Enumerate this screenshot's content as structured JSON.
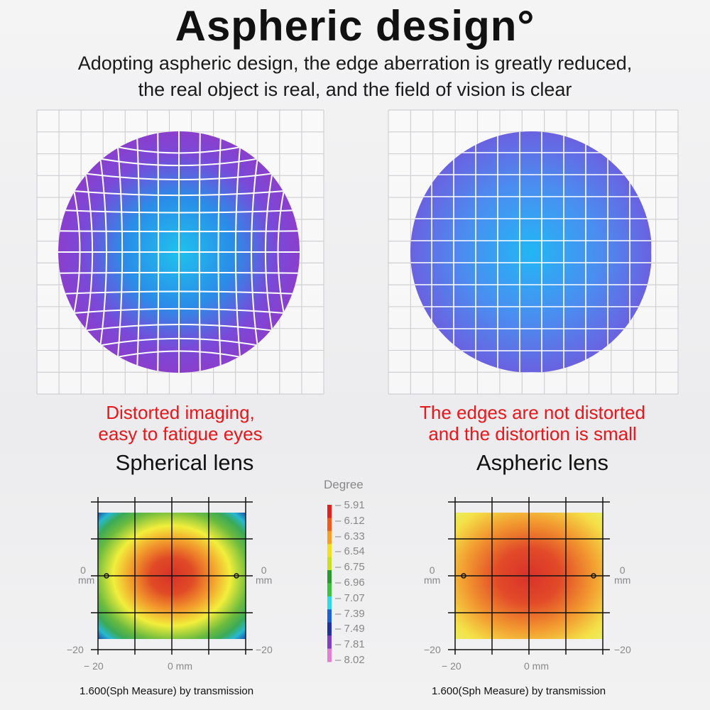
{
  "header": {
    "title": "Aspheric design°",
    "subtitle_line1": "Adopting aspheric design, the edge aberration is greatly reduced,",
    "subtitle_line2": "the real object is real, and the field of vision is clear"
  },
  "left": {
    "note_line1": "Distorted imaging,",
    "note_line2": "easy to fatigue eyes",
    "label": "Spherical lens",
    "caption": "1.600(Sph Measure) by transmission"
  },
  "right": {
    "note_line1": "The edges are not distorted",
    "note_line2": "and the distortion is small",
    "label": "Aspheric lens",
    "caption": "1.600(Sph Measure) by transmission"
  },
  "axes": {
    "y_zero": "0",
    "y_unit": "mm",
    "y_min": "−20",
    "x_min": "− 20",
    "x_zero": "0 mm"
  },
  "legend": {
    "title": "Degree",
    "values": [
      "5.91",
      "6.12",
      "6.33",
      "6.54",
      "6.75",
      "6.96",
      "7.07",
      "7.39",
      "7.49",
      "7.81",
      "8.02"
    ],
    "colors": [
      "#e02020",
      "#f05a18",
      "#f5a020",
      "#f0e020",
      "#c8e020",
      "#2a9a30",
      "#40c040",
      "#30d8e8",
      "#1a60d0",
      "#2030a0",
      "#8040c0",
      "#e080d0"
    ]
  },
  "colors": {
    "accent_red": "#e8171c"
  }
}
